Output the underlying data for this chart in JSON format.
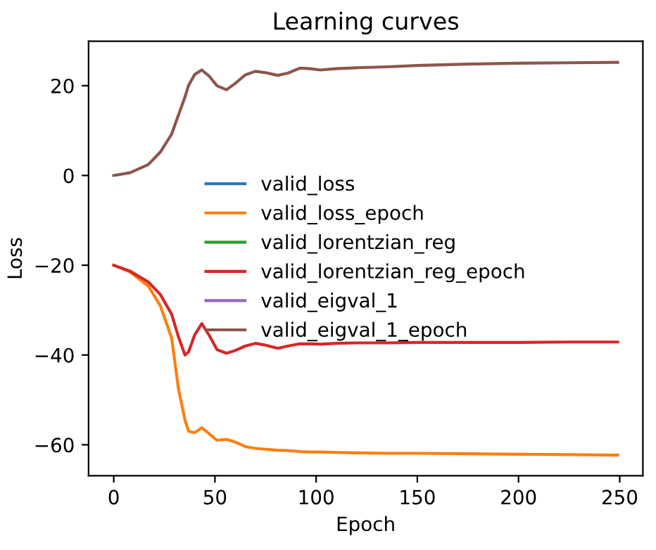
{
  "chart_data": {
    "type": "line",
    "title": "Learning curves",
    "xlabel": "Epoch",
    "ylabel": "Loss",
    "x": [
      0,
      8,
      17,
      23,
      28.6,
      32,
      35.2,
      37,
      40,
      43.5,
      47,
      51,
      55.7,
      60,
      65,
      70,
      75,
      81,
      86,
      92,
      97,
      102,
      110,
      120,
      135,
      150,
      175,
      200,
      225,
      249
    ],
    "series": [
      {
        "name": "valid_loss",
        "color": "#1f77b4",
        "values": [
          null,
          null,
          null,
          null,
          null,
          null,
          null,
          null,
          null,
          null,
          null,
          null,
          null,
          null,
          null,
          null,
          null,
          null,
          null,
          null,
          null,
          null,
          null,
          null,
          null,
          null,
          null,
          null,
          null,
          null
        ]
      },
      {
        "name": "valid_loss_epoch",
        "color": "#ff7f0e",
        "values": [
          -20,
          -21.5,
          -24.6,
          -29,
          -36.2,
          -47.6,
          -54.5,
          -57,
          -57.3,
          -56.2,
          -57.5,
          -59,
          -58.8,
          -59.4,
          -60.4,
          -60.8,
          -61,
          -61.2,
          -61.3,
          -61.5,
          -61.6,
          -61.6,
          -61.7,
          -61.8,
          -61.9,
          -61.9,
          -62,
          -62.1,
          -62.2,
          -62.3
        ]
      },
      {
        "name": "valid_lorentzian_reg",
        "color": "#2ca02c",
        "values": [
          null,
          null,
          null,
          null,
          null,
          null,
          null,
          null,
          null,
          null,
          null,
          null,
          null,
          null,
          null,
          null,
          null,
          null,
          null,
          null,
          null,
          null,
          null,
          null,
          null,
          null,
          null,
          null,
          null,
          null
        ]
      },
      {
        "name": "valid_lorentzian_reg_epoch",
        "color": "#d62728",
        "values": [
          -20,
          -21.3,
          -23.7,
          -26.5,
          -30.9,
          -36,
          -40,
          -39.3,
          -35.5,
          -33,
          -35.5,
          -38.8,
          -39.6,
          -39,
          -38,
          -37.4,
          -37.8,
          -38.5,
          -38,
          -37.5,
          -37.5,
          -37.6,
          -37.4,
          -37.3,
          -37.3,
          -37.2,
          -37.2,
          -37.2,
          -37.1,
          -37.1
        ]
      },
      {
        "name": "valid_eigval_1",
        "color": "#9467bd",
        "values": [
          null,
          null,
          null,
          null,
          null,
          null,
          null,
          null,
          null,
          null,
          null,
          null,
          null,
          null,
          null,
          null,
          null,
          null,
          null,
          null,
          null,
          null,
          null,
          null,
          null,
          null,
          null,
          null,
          null,
          null
        ]
      },
      {
        "name": "valid_eigval_1_epoch",
        "color": "#8c564b",
        "values": [
          0,
          0.6,
          2.4,
          5.2,
          9.2,
          13.5,
          17.5,
          20.1,
          22.5,
          23.5,
          22.2,
          20,
          19.1,
          20.5,
          22.4,
          23.2,
          22.9,
          22.3,
          22.8,
          23.9,
          23.8,
          23.5,
          23.8,
          24,
          24.2,
          24.5,
          24.8,
          25,
          25.1,
          25.2
        ]
      }
    ],
    "xlim": [
      -12.45,
      261.45
    ],
    "ylim": [
      -66.9,
      29.9
    ],
    "xticks": [
      0,
      50,
      100,
      150,
      200,
      250
    ],
    "yticks": [
      {
        "value": -60,
        "label": "−60"
      },
      {
        "value": -40,
        "label": "−40"
      },
      {
        "value": -20,
        "label": "−20"
      },
      0,
      20
    ],
    "legend": "center",
    "grid": false,
    "marker": "none",
    "line_style": "solid"
  }
}
